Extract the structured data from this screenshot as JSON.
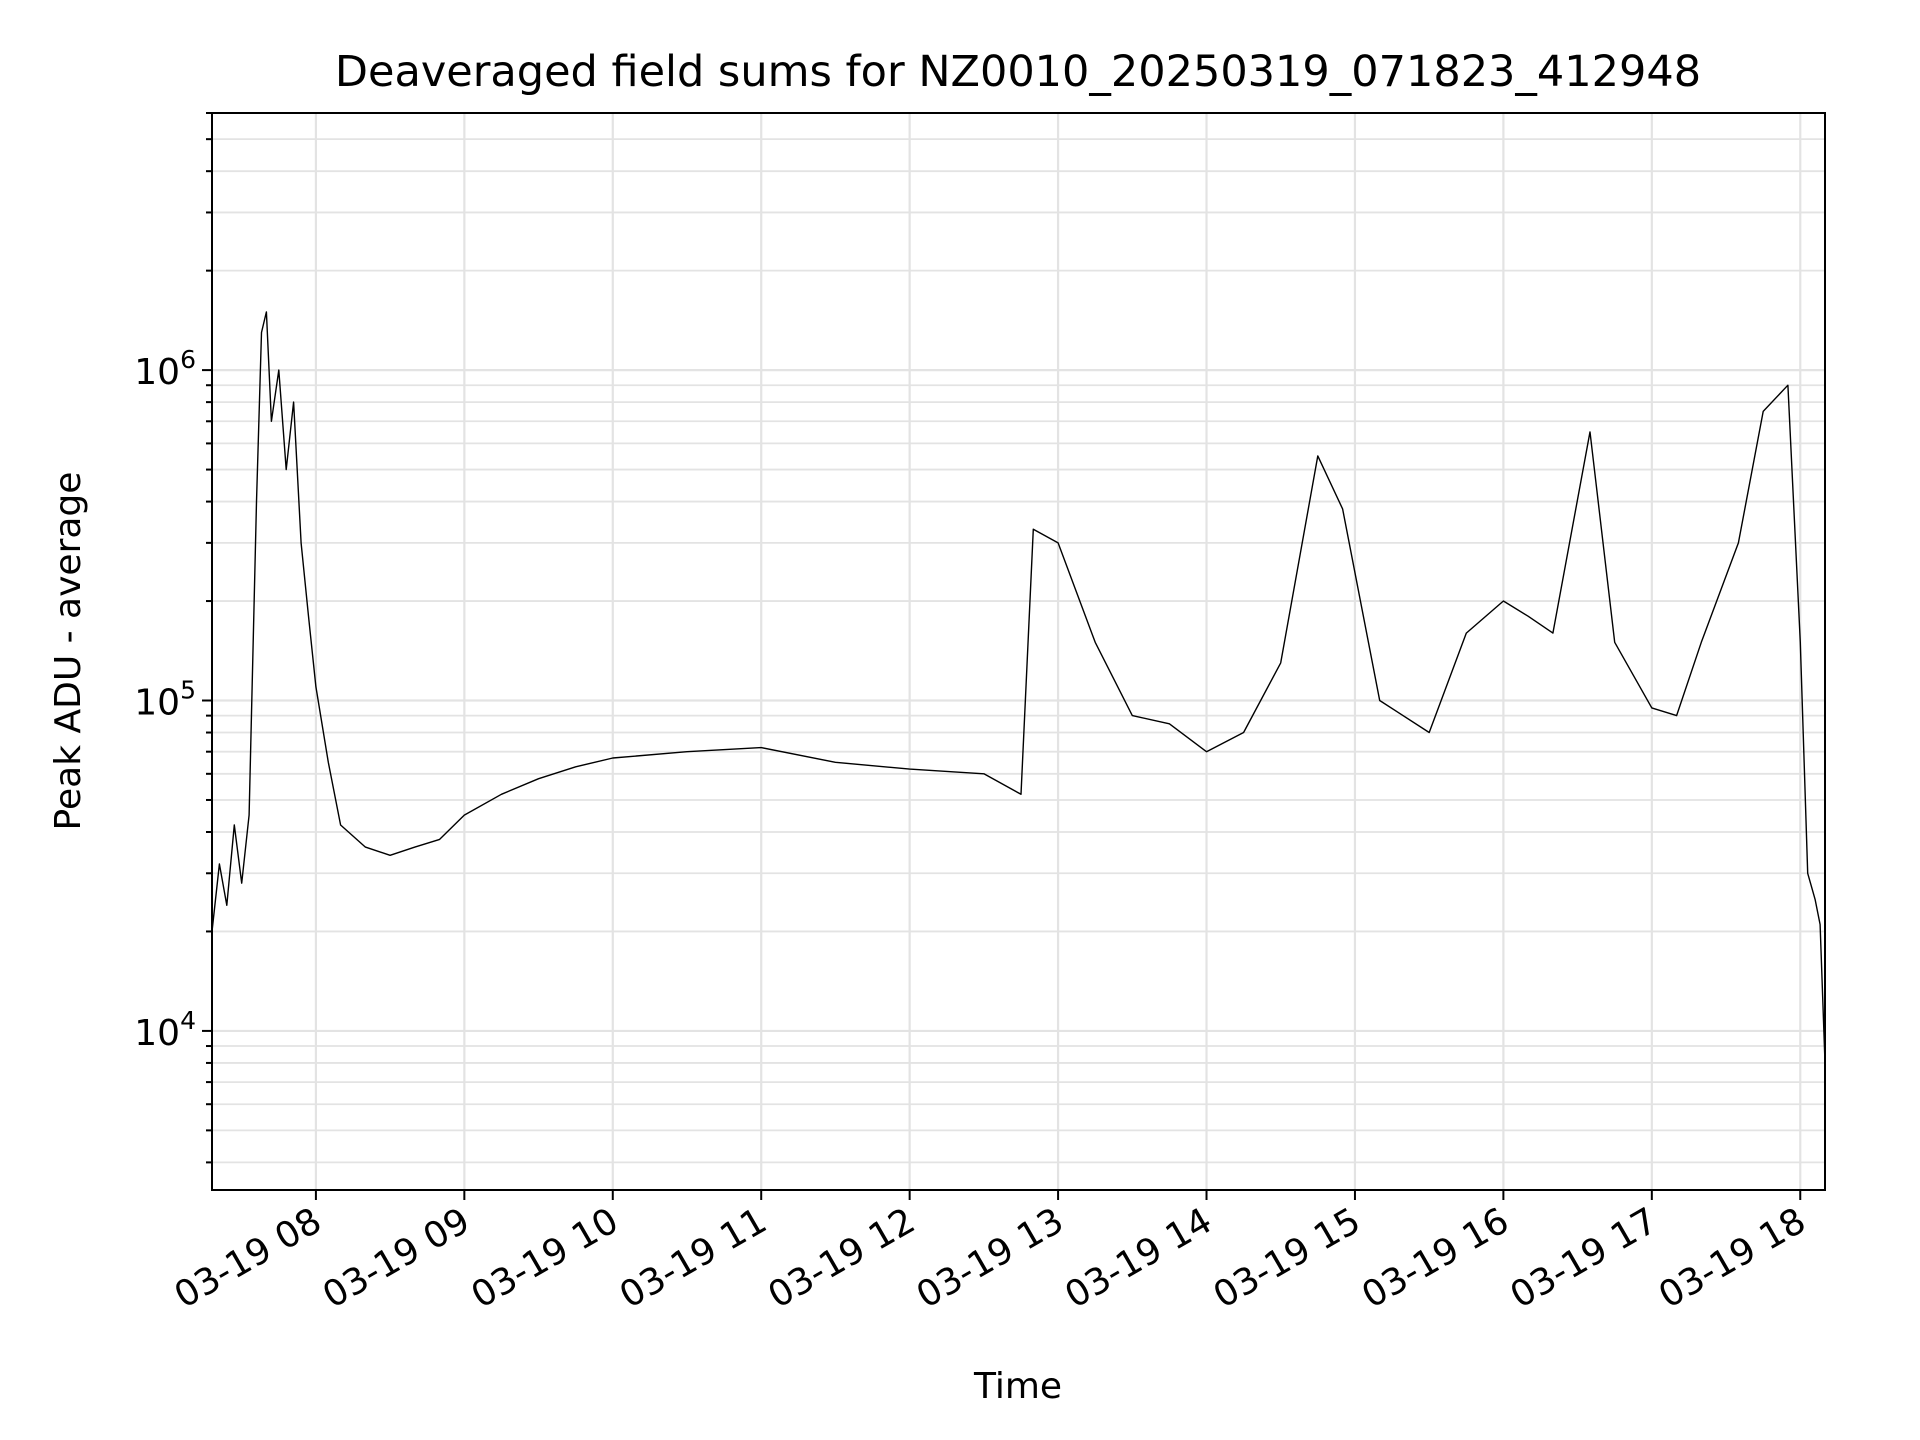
{
  "chart_data": {
    "type": "line",
    "title": "Deaveraged field sums for NZ0010_20250319_071823_412948",
    "xlabel": "Time",
    "ylabel": "Peak ADU - average",
    "yscale": "log",
    "grid": true,
    "xlim": [
      "03-19 07:18",
      "03-19 18:10"
    ],
    "ylim": [
      3300,
      6000000
    ],
    "x_ticks": [
      "03-19 08",
      "03-19 09",
      "03-19 10",
      "03-19 11",
      "03-19 12",
      "03-19 13",
      "03-19 14",
      "03-19 15",
      "03-19 16",
      "03-19 17",
      "03-19 18"
    ],
    "y_ticks": [
      {
        "base": "10",
        "exp": "4",
        "value": 10000
      },
      {
        "base": "10",
        "exp": "5",
        "value": 100000
      },
      {
        "base": "10",
        "exp": "6",
        "value": 1000000
      }
    ],
    "line_color": "#000000",
    "series": [
      {
        "name": "",
        "points": [
          [
            "07:18",
            20000
          ],
          [
            "07:21",
            32000
          ],
          [
            "07:24",
            24000
          ],
          [
            "07:27",
            42000
          ],
          [
            "07:30",
            28000
          ],
          [
            "07:33",
            45000
          ],
          [
            "07:36",
            400000
          ],
          [
            "07:38",
            1300000
          ],
          [
            "07:40",
            1500000
          ],
          [
            "07:42",
            700000
          ],
          [
            "07:45",
            1000000
          ],
          [
            "07:48",
            500000
          ],
          [
            "07:51",
            800000
          ],
          [
            "07:54",
            300000
          ],
          [
            "07:57",
            180000
          ],
          [
            "08:00",
            110000
          ],
          [
            "08:05",
            65000
          ],
          [
            "08:10",
            42000
          ],
          [
            "08:20",
            36000
          ],
          [
            "08:30",
            34000
          ],
          [
            "08:40",
            36000
          ],
          [
            "08:50",
            38000
          ],
          [
            "09:00",
            45000
          ],
          [
            "09:15",
            52000
          ],
          [
            "09:30",
            58000
          ],
          [
            "09:45",
            63000
          ],
          [
            "10:00",
            67000
          ],
          [
            "10:30",
            70000
          ],
          [
            "11:00",
            72000
          ],
          [
            "11:30",
            65000
          ],
          [
            "12:00",
            62000
          ],
          [
            "12:30",
            60000
          ],
          [
            "12:45",
            52000
          ],
          [
            "12:50",
            330000
          ],
          [
            "13:00",
            300000
          ],
          [
            "13:15",
            150000
          ],
          [
            "13:30",
            90000
          ],
          [
            "13:45",
            85000
          ],
          [
            "14:00",
            70000
          ],
          [
            "14:15",
            80000
          ],
          [
            "14:30",
            130000
          ],
          [
            "14:45",
            550000
          ],
          [
            "14:55",
            380000
          ],
          [
            "15:10",
            100000
          ],
          [
            "15:30",
            80000
          ],
          [
            "15:45",
            160000
          ],
          [
            "16:00",
            200000
          ],
          [
            "16:10",
            180000
          ],
          [
            "16:20",
            160000
          ],
          [
            "16:35",
            650000
          ],
          [
            "16:45",
            150000
          ],
          [
            "17:00",
            95000
          ],
          [
            "17:10",
            90000
          ],
          [
            "17:20",
            150000
          ],
          [
            "17:35",
            300000
          ],
          [
            "17:45",
            750000
          ],
          [
            "17:55",
            900000
          ],
          [
            "18:00",
            150000
          ],
          [
            "18:03",
            30000
          ],
          [
            "18:06",
            25000
          ],
          [
            "18:08",
            21000
          ],
          [
            "18:10",
            8000
          ]
        ]
      }
    ]
  }
}
